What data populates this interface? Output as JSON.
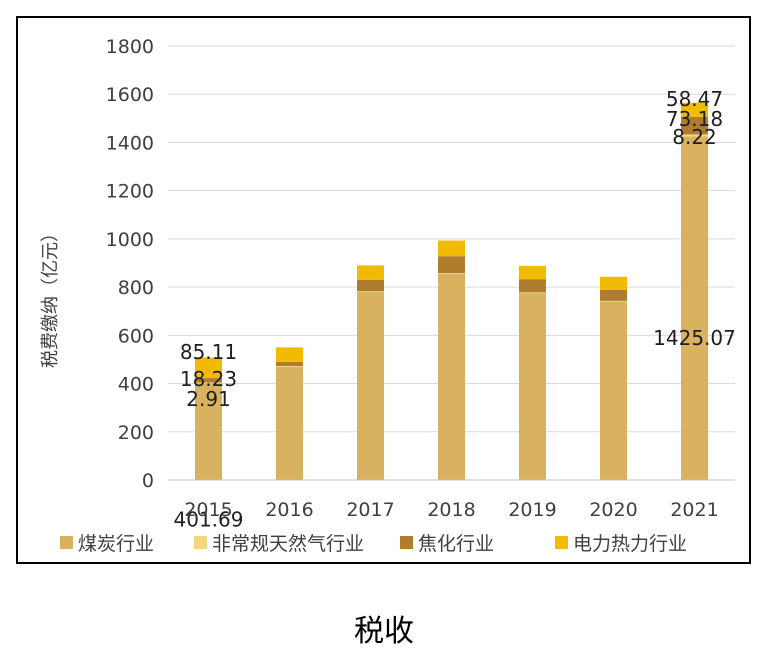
{
  "caption": "税收",
  "chart_data": {
    "type": "bar",
    "stacked": true,
    "categories": [
      "2015",
      "2016",
      "2017",
      "2018",
      "2019",
      "2020",
      "2021"
    ],
    "ylabel": "税费缴纳（亿元）",
    "ylim": [
      0,
      1800
    ],
    "yticks": [
      0,
      200,
      400,
      600,
      800,
      1000,
      1200,
      1400,
      1600,
      1800
    ],
    "grid": true,
    "legend_position": "bottom",
    "series": [
      {
        "name": "煤炭行业",
        "color": "#D9B25F",
        "values": [
          401.69,
          470,
          780,
          855,
          775,
          740,
          1425.07
        ]
      },
      {
        "name": "非常规天然气行业",
        "color": "#F2D680",
        "values": [
          2.91,
          3,
          3,
          3,
          3,
          3,
          8.22
        ]
      },
      {
        "name": "焦化行业",
        "color": "#B07D2F",
        "values": [
          18.23,
          17,
          47,
          70,
          55,
          45,
          73.18
        ]
      },
      {
        "name": "电力热力行业",
        "color": "#F0BB00",
        "values": [
          85.11,
          60,
          60,
          65,
          55,
          55,
          58.47
        ]
      }
    ],
    "data_labels": [
      {
        "category": "2015",
        "series": "煤炭行业",
        "text": "401.69"
      },
      {
        "category": "2015",
        "series": "非常规天然气行业",
        "text": "2.91"
      },
      {
        "category": "2015",
        "series": "焦化行业",
        "text": "18.23"
      },
      {
        "category": "2015",
        "series": "电力热力行业",
        "text": "85.11"
      },
      {
        "category": "2021",
        "series": "煤炭行业",
        "text": "1425.07"
      },
      {
        "category": "2021",
        "series": "非常规天然气行业",
        "text": "8.22"
      },
      {
        "category": "2021",
        "series": "焦化行业",
        "text": "73.18"
      },
      {
        "category": "2021",
        "series": "电力热力行业",
        "text": "58.47"
      }
    ]
  }
}
